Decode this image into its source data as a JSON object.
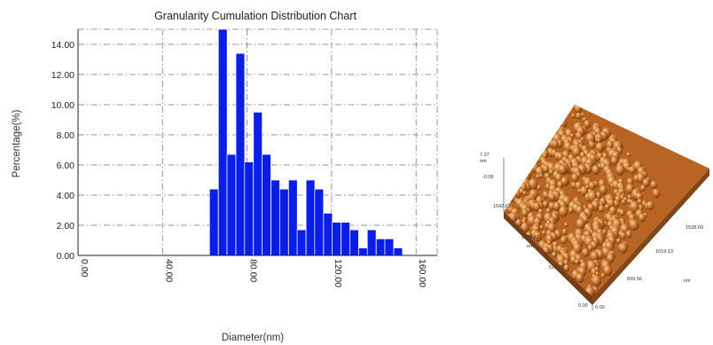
{
  "chart_data": {
    "type": "bar",
    "title": "Granularity Cumulation Distribution  Chart",
    "xlabel": "Diameter(nm)",
    "ylabel": "Percentage(%)",
    "xlim": [
      0,
      170
    ],
    "ylim": [
      0,
      15
    ],
    "x_ticks": [
      "0.00",
      "40.00",
      "80.00",
      "120.00",
      "160.00"
    ],
    "x_tick_values": [
      0,
      40,
      80,
      120,
      160
    ],
    "y_ticks": [
      "0.00",
      "2.00",
      "4.00",
      "6.00",
      "8.00",
      "10.00",
      "12.00",
      "14.00"
    ],
    "y_tick_values": [
      0,
      2,
      4,
      6,
      8,
      10,
      12,
      14
    ],
    "grid": true,
    "bar_color": "#0a1ee6",
    "bin_width": 4.15,
    "x": [
      64.3,
      68.5,
      72.6,
      76.8,
      80.9,
      85.1,
      89.2,
      93.4,
      97.5,
      101.7,
      105.8,
      110.0,
      114.1,
      118.3,
      122.4,
      126.6,
      130.7,
      134.9,
      139.0,
      143.2,
      147.3,
      151.5,
      155.6,
      159.8,
      163.9,
      168.1
    ],
    "values": [
      4.4,
      15.0,
      6.7,
      13.4,
      6.2,
      9.5,
      6.7,
      5.0,
      4.4,
      5.0,
      1.7,
      5.0,
      4.4,
      2.8,
      2.2,
      2.2,
      1.7,
      0.5,
      1.7,
      1.1,
      1.1,
      0.5,
      0,
      0,
      0,
      0
    ]
  },
  "afm_image": {
    "z_max": "7.37",
    "z_unit": "nm",
    "z_min": "-0.08",
    "y_ticks": [
      "1542.63",
      "1028.42",
      "514.21"
    ],
    "y_unit": "nm",
    "x_ticks": [
      "0.00",
      "509.56",
      "1019.13",
      "1528.69"
    ],
    "x_unit": "nm",
    "origin_label": "0.00",
    "colors": {
      "peak": "#f5c08a",
      "mid": "#c8702a",
      "shadow": "#5a2a08"
    }
  }
}
